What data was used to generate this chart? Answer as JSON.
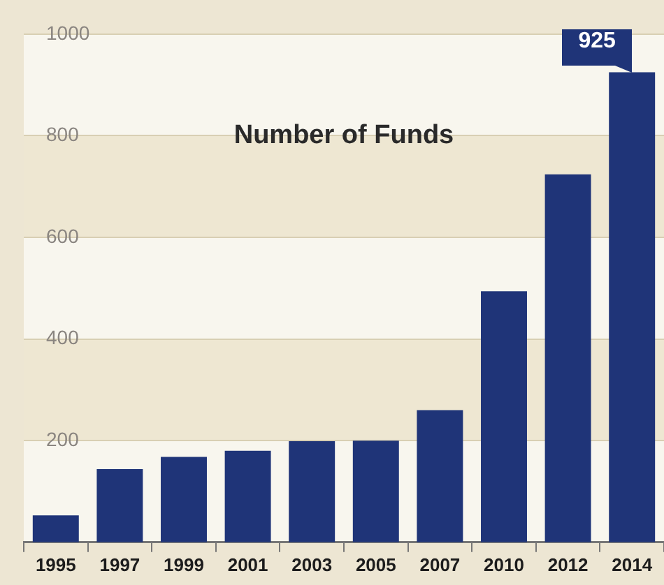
{
  "chart_data": {
    "type": "bar",
    "title": "Number of Funds",
    "categories": [
      "1995",
      "1997",
      "1999",
      "2001",
      "2003",
      "2005",
      "2007",
      "2010",
      "2012",
      "2014"
    ],
    "values": [
      53,
      144,
      168,
      180,
      199,
      200,
      260,
      494,
      724,
      925
    ],
    "value_labels": [
      null,
      null,
      null,
      null,
      null,
      null,
      null,
      null,
      null,
      "925"
    ],
    "color": "#1f3478",
    "ylim": [
      0,
      1000
    ],
    "yticks": [
      200,
      400,
      600,
      800,
      1000
    ],
    "grid": true,
    "legend": false
  }
}
